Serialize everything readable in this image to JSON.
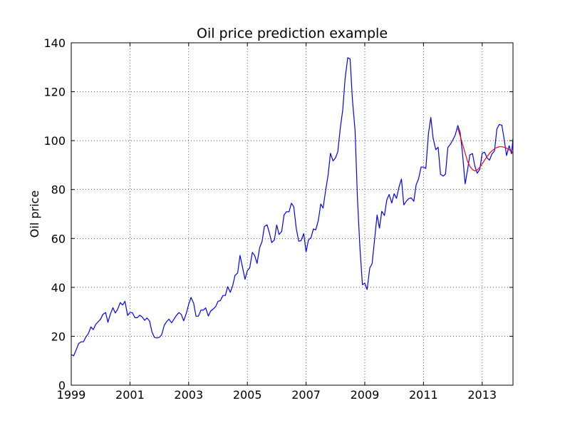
{
  "chart_data": {
    "type": "line",
    "title": "Oil price prediction example",
    "xlabel": "",
    "ylabel": "Oil price",
    "xlim": [
      1999,
      2014.05
    ],
    "ylim": [
      0,
      140
    ],
    "xticks": [
      1999,
      2001,
      2003,
      2005,
      2007,
      2009,
      2011,
      2013
    ],
    "xtick_labels": [
      "1999",
      "2001",
      "2003",
      "2005",
      "2007",
      "2009",
      "2011",
      "2013"
    ],
    "yticks": [
      0,
      20,
      40,
      60,
      80,
      100,
      120,
      140
    ],
    "ytick_labels": [
      "0",
      "20",
      "40",
      "60",
      "80",
      "100",
      "120",
      "140"
    ],
    "grid": true,
    "series": [
      {
        "color": "#0000ff",
        "points": [
          [
            1999.0,
            12.5
          ],
          [
            1999.08,
            12.0
          ],
          [
            1999.17,
            14.5
          ],
          [
            1999.25,
            17.0
          ],
          [
            1999.33,
            17.7
          ],
          [
            1999.42,
            17.8
          ],
          [
            1999.5,
            19.8
          ],
          [
            1999.58,
            21.0
          ],
          [
            1999.67,
            23.8
          ],
          [
            1999.75,
            22.7
          ],
          [
            1999.83,
            24.8
          ],
          [
            1999.92,
            26.0
          ],
          [
            2000.0,
            27.0
          ],
          [
            2000.08,
            29.0
          ],
          [
            2000.17,
            29.7
          ],
          [
            2000.25,
            25.7
          ],
          [
            2000.33,
            29.0
          ],
          [
            2000.42,
            31.7
          ],
          [
            2000.5,
            29.5
          ],
          [
            2000.58,
            31.0
          ],
          [
            2000.67,
            33.8
          ],
          [
            2000.75,
            32.8
          ],
          [
            2000.83,
            34.3
          ],
          [
            2000.92,
            28.5
          ],
          [
            2001.0,
            29.7
          ],
          [
            2001.08,
            29.7
          ],
          [
            2001.17,
            27.6
          ],
          [
            2001.25,
            27.6
          ],
          [
            2001.33,
            28.6
          ],
          [
            2001.42,
            27.9
          ],
          [
            2001.5,
            26.5
          ],
          [
            2001.58,
            27.5
          ],
          [
            2001.67,
            26.2
          ],
          [
            2001.75,
            21.8
          ],
          [
            2001.83,
            19.6
          ],
          [
            2001.92,
            19.3
          ],
          [
            2002.0,
            19.6
          ],
          [
            2002.08,
            20.6
          ],
          [
            2002.17,
            24.5
          ],
          [
            2002.25,
            26.0
          ],
          [
            2002.33,
            27.0
          ],
          [
            2002.42,
            25.5
          ],
          [
            2002.5,
            27.0
          ],
          [
            2002.58,
            28.5
          ],
          [
            2002.67,
            29.7
          ],
          [
            2002.75,
            28.9
          ],
          [
            2002.83,
            26.3
          ],
          [
            2002.92,
            29.4
          ],
          [
            2003.0,
            33.0
          ],
          [
            2003.08,
            35.9
          ],
          [
            2003.17,
            33.5
          ],
          [
            2003.25,
            28.2
          ],
          [
            2003.33,
            28.2
          ],
          [
            2003.42,
            30.7
          ],
          [
            2003.5,
            30.7
          ],
          [
            2003.58,
            31.6
          ],
          [
            2003.67,
            28.3
          ],
          [
            2003.75,
            30.3
          ],
          [
            2003.83,
            31.1
          ],
          [
            2003.92,
            32.1
          ],
          [
            2004.0,
            34.3
          ],
          [
            2004.08,
            34.6
          ],
          [
            2004.17,
            36.7
          ],
          [
            2004.25,
            36.7
          ],
          [
            2004.33,
            40.3
          ],
          [
            2004.42,
            38.0
          ],
          [
            2004.5,
            40.7
          ],
          [
            2004.58,
            44.9
          ],
          [
            2004.67,
            45.9
          ],
          [
            2004.75,
            53.1
          ],
          [
            2004.83,
            48.5
          ],
          [
            2004.92,
            43.3
          ],
          [
            2005.0,
            46.8
          ],
          [
            2005.08,
            48.0
          ],
          [
            2005.17,
            54.3
          ],
          [
            2005.25,
            53.0
          ],
          [
            2005.33,
            49.8
          ],
          [
            2005.42,
            56.3
          ],
          [
            2005.5,
            58.7
          ],
          [
            2005.58,
            64.9
          ],
          [
            2005.67,
            65.6
          ],
          [
            2005.75,
            62.3
          ],
          [
            2005.83,
            58.3
          ],
          [
            2005.92,
            59.4
          ],
          [
            2006.0,
            65.5
          ],
          [
            2006.08,
            61.6
          ],
          [
            2006.17,
            62.9
          ],
          [
            2006.25,
            69.6
          ],
          [
            2006.33,
            70.9
          ],
          [
            2006.42,
            70.9
          ],
          [
            2006.5,
            74.4
          ],
          [
            2006.58,
            73.0
          ],
          [
            2006.67,
            63.8
          ],
          [
            2006.75,
            58.9
          ],
          [
            2006.83,
            59.1
          ],
          [
            2006.92,
            62.0
          ],
          [
            2007.0,
            54.5
          ],
          [
            2007.08,
            59.3
          ],
          [
            2007.17,
            60.4
          ],
          [
            2007.25,
            63.9
          ],
          [
            2007.33,
            63.5
          ],
          [
            2007.42,
            67.5
          ],
          [
            2007.5,
            74.1
          ],
          [
            2007.58,
            72.4
          ],
          [
            2007.67,
            79.9
          ],
          [
            2007.75,
            85.8
          ],
          [
            2007.83,
            94.8
          ],
          [
            2007.92,
            91.7
          ],
          [
            2008.0,
            92.9
          ],
          [
            2008.08,
            95.4
          ],
          [
            2008.17,
            105.5
          ],
          [
            2008.25,
            112.6
          ],
          [
            2008.33,
            125.4
          ],
          [
            2008.42,
            133.9
          ],
          [
            2008.5,
            133.4
          ],
          [
            2008.58,
            116.7
          ],
          [
            2008.67,
            104.1
          ],
          [
            2008.75,
            76.6
          ],
          [
            2008.83,
            57.3
          ],
          [
            2008.92,
            41.1
          ],
          [
            2009.0,
            41.7
          ],
          [
            2009.08,
            39.1
          ],
          [
            2009.17,
            47.9
          ],
          [
            2009.25,
            49.7
          ],
          [
            2009.33,
            59.0
          ],
          [
            2009.42,
            69.6
          ],
          [
            2009.5,
            64.2
          ],
          [
            2009.58,
            71.1
          ],
          [
            2009.67,
            69.4
          ],
          [
            2009.75,
            75.7
          ],
          [
            2009.83,
            78.0
          ],
          [
            2009.92,
            74.5
          ],
          [
            2010.0,
            78.3
          ],
          [
            2010.08,
            76.4
          ],
          [
            2010.17,
            81.2
          ],
          [
            2010.25,
            84.3
          ],
          [
            2010.33,
            73.7
          ],
          [
            2010.42,
            75.3
          ],
          [
            2010.5,
            76.3
          ],
          [
            2010.58,
            76.6
          ],
          [
            2010.67,
            75.2
          ],
          [
            2010.75,
            81.9
          ],
          [
            2010.83,
            84.3
          ],
          [
            2010.92,
            89.2
          ],
          [
            2011.0,
            89.2
          ],
          [
            2011.08,
            88.6
          ],
          [
            2011.17,
            102.9
          ],
          [
            2011.25,
            109.5
          ],
          [
            2011.33,
            100.9
          ],
          [
            2011.42,
            96.3
          ],
          [
            2011.5,
            97.3
          ],
          [
            2011.58,
            86.3
          ],
          [
            2011.67,
            85.5
          ],
          [
            2011.75,
            86.3
          ],
          [
            2011.83,
            97.2
          ],
          [
            2011.92,
            98.6
          ],
          [
            2012.0,
            100.3
          ],
          [
            2012.08,
            102.2
          ],
          [
            2012.17,
            106.2
          ],
          [
            2012.25,
            103.3
          ],
          [
            2012.33,
            94.7
          ],
          [
            2012.42,
            82.3
          ],
          [
            2012.5,
            87.9
          ],
          [
            2012.58,
            94.2
          ],
          [
            2012.67,
            94.7
          ],
          [
            2012.75,
            89.6
          ],
          [
            2012.83,
            86.7
          ],
          [
            2012.92,
            88.3
          ],
          [
            2013.0,
            94.8
          ],
          [
            2013.08,
            95.3
          ],
          [
            2013.17,
            92.9
          ],
          [
            2013.25,
            92.0
          ],
          [
            2013.33,
            94.5
          ],
          [
            2013.42,
            95.8
          ],
          [
            2013.5,
            104.7
          ],
          [
            2013.58,
            106.6
          ],
          [
            2013.67,
            106.3
          ],
          [
            2013.75,
            100.5
          ],
          [
            2013.83,
            93.9
          ],
          [
            2013.92,
            97.9
          ],
          [
            2014.0,
            94.6
          ],
          [
            2014.05,
            100.8
          ]
        ]
      },
      {
        "color": "#ff0000",
        "points": [
          [
            2012.17,
            105.0
          ],
          [
            2012.25,
            102.0
          ],
          [
            2012.33,
            98.6
          ],
          [
            2012.42,
            94.9
          ],
          [
            2012.5,
            91.6
          ],
          [
            2012.58,
            89.5
          ],
          [
            2012.67,
            88.2
          ],
          [
            2012.75,
            87.6
          ],
          [
            2012.83,
            88.0
          ],
          [
            2012.92,
            89.1
          ],
          [
            2013.0,
            90.5
          ],
          [
            2013.08,
            92.0
          ],
          [
            2013.17,
            93.5
          ],
          [
            2013.25,
            94.8
          ],
          [
            2013.33,
            95.8
          ],
          [
            2013.42,
            96.6
          ],
          [
            2013.5,
            97.2
          ],
          [
            2013.58,
            97.5
          ],
          [
            2013.67,
            97.5
          ],
          [
            2013.75,
            97.3
          ],
          [
            2013.83,
            96.9
          ],
          [
            2013.92,
            96.3
          ],
          [
            2014.0,
            95.5
          ],
          [
            2014.05,
            95.0
          ]
        ]
      }
    ]
  }
}
